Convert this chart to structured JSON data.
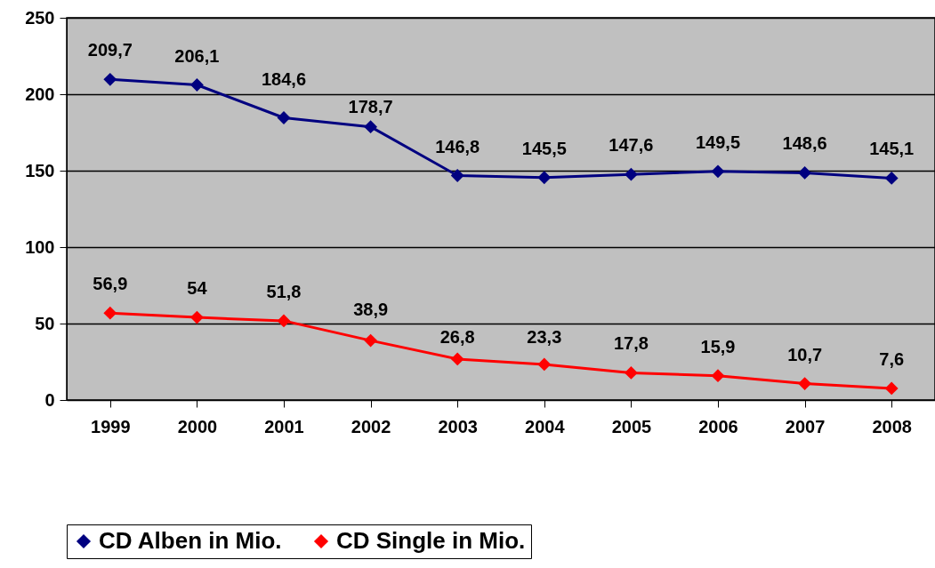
{
  "chart_data": {
    "type": "line",
    "categories": [
      "1999",
      "2000",
      "2001",
      "2002",
      "2003",
      "2004",
      "2005",
      "2006",
      "2007",
      "2008"
    ],
    "series": [
      {
        "name": "CD Alben in Mio.",
        "color": "#000080",
        "values": [
          209.7,
          206.1,
          184.6,
          178.7,
          146.8,
          145.5,
          147.6,
          149.5,
          148.6,
          145.1
        ],
        "value_labels": [
          "209,7",
          "206,1",
          "184,6",
          "178,7",
          "146,8",
          "145,5",
          "147,6",
          "149,5",
          "148,6",
          "145,1"
        ]
      },
      {
        "name": "CD Single in Mio.",
        "color": "#ff0000",
        "values": [
          56.9,
          54,
          51.8,
          38.9,
          26.8,
          23.3,
          17.8,
          15.9,
          10.7,
          7.6
        ],
        "value_labels": [
          "56,9",
          "54",
          "51,8",
          "38,9",
          "26,8",
          "23,3",
          "17,8",
          "15,9",
          "10,7",
          "7,6"
        ]
      }
    ],
    "ylim": [
      0,
      250
    ],
    "yticks": [
      0,
      50,
      100,
      150,
      200,
      250
    ],
    "grid": "y",
    "legend": "bottom",
    "marker": "diamond",
    "line_style": "solid"
  }
}
